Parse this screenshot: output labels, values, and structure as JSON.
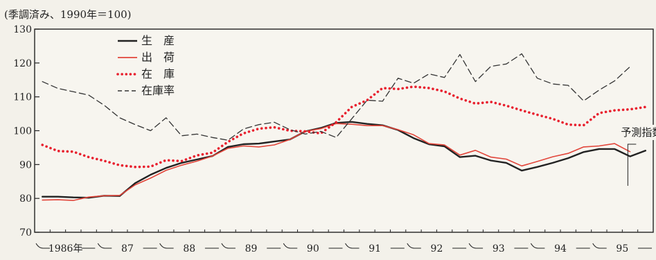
{
  "chart_data": {
    "type": "line",
    "title": "",
    "unit_note": "(季調済み、1990年＝100)",
    "xlabel": "",
    "ylabel": "",
    "ylim": [
      70,
      130
    ],
    "yticks": [
      70,
      80,
      90,
      100,
      110,
      120,
      130
    ],
    "grid": false,
    "x": [
      "1986-Q1",
      "1986-Q2",
      "1986-Q3",
      "1986-Q4",
      "1987-Q1",
      "1987-Q2",
      "1987-Q3",
      "1987-Q4",
      "1988-Q1",
      "1988-Q2",
      "1988-Q3",
      "1988-Q4",
      "1989-Q1",
      "1989-Q2",
      "1989-Q3",
      "1989-Q4",
      "1990-Q1",
      "1990-Q2",
      "1990-Q3",
      "1990-Q4",
      "1991-Q1",
      "1991-Q2",
      "1991-Q3",
      "1991-Q4",
      "1992-Q1",
      "1992-Q2",
      "1992-Q3",
      "1992-Q4",
      "1993-Q1",
      "1993-Q2",
      "1993-Q3",
      "1993-Q4",
      "1994-Q1",
      "1994-Q2",
      "1994-Q3",
      "1994-Q4",
      "1995-Q1",
      "1995-Q2",
      "1995-Q3",
      "1995-Q4"
    ],
    "year_labels": [
      {
        "label": "1986年",
        "start": 0
      },
      {
        "label": "87",
        "start": 4
      },
      {
        "label": "88",
        "start": 8
      },
      {
        "label": "89",
        "start": 12
      },
      {
        "label": "90",
        "start": 16
      },
      {
        "label": "91",
        "start": 20
      },
      {
        "label": "92",
        "start": 24
      },
      {
        "label": "93",
        "start": 28
      },
      {
        "label": "94",
        "start": 32
      },
      {
        "label": "95",
        "start": 36
      }
    ],
    "series": [
      {
        "name": "生　産",
        "color": "#222222",
        "style": "solid",
        "values": [
          80.5,
          80.5,
          80.3,
          80.2,
          80.8,
          80.7,
          84.5,
          87,
          89,
          90.5,
          91.5,
          92.5,
          95.2,
          96,
          96.2,
          96.8,
          97.4,
          99.8,
          100.8,
          102.3,
          102.6,
          102,
          101.6,
          100.2,
          97.8,
          96,
          95.4,
          92.2,
          92.6,
          91.2,
          90.5,
          88.2,
          89.3,
          90.5,
          91.9,
          93.7,
          94.6,
          94.6,
          92.4,
          94.1
        ]
      },
      {
        "name": "出　荷",
        "color": "#e2453a",
        "style": "solid",
        "values": [
          79.5,
          79.6,
          79.4,
          80.4,
          80.8,
          80.9,
          84,
          86,
          88.3,
          89.8,
          91,
          92.5,
          94.8,
          95.5,
          95.2,
          95.8,
          97.4,
          99.8,
          100.6,
          102.1,
          101.9,
          101.5,
          101.5,
          100.3,
          98.8,
          96.2,
          95.8,
          92.8,
          94.2,
          92.2,
          91.6,
          89.6,
          90.9,
          92.3,
          93.3,
          95.2,
          95.5,
          96.2,
          93.8,
          null
        ]
      },
      {
        "name": "在　庫",
        "color": "#e8202e",
        "style": "dotted",
        "values": [
          95.8,
          94,
          93.8,
          92.2,
          91.1,
          89.8,
          89.3,
          89.4,
          91.3,
          91,
          92.7,
          93.5,
          96.7,
          99.2,
          100.6,
          101,
          100,
          99.8,
          99.2,
          102.5,
          107,
          109,
          112.6,
          112.3,
          113,
          112.6,
          111.6,
          109.5,
          108,
          108.5,
          107.4,
          106,
          104.7,
          103.5,
          101.8,
          101.6,
          105.2,
          106,
          106.3,
          107
        ]
      },
      {
        "name": "在庫率",
        "color": "#333333",
        "style": "dashed",
        "values": [
          114.5,
          112.5,
          111.5,
          110.5,
          107.5,
          103.8,
          101.8,
          100,
          103.8,
          98.5,
          99,
          98,
          97.2,
          100.5,
          101.8,
          102.5,
          100.3,
          99,
          99.8,
          98,
          103.5,
          109,
          108.7,
          115.5,
          114,
          116.8,
          115.7,
          122.5,
          114.5,
          119,
          119.7,
          122.7,
          115.5,
          113.8,
          113.4,
          108.8,
          112,
          114.7,
          118.9,
          null
        ]
      }
    ],
    "annotation": {
      "label": "予測指数",
      "from_index": 38
    }
  }
}
